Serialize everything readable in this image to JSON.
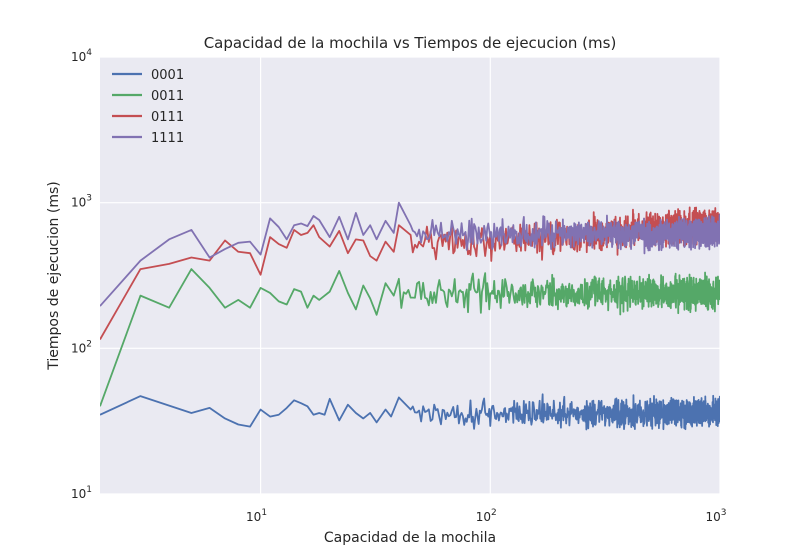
{
  "chart_data": {
    "type": "line",
    "title": "Capacidad de la mochila vs Tiempos de ejecucion (ms)",
    "xlabel": "Capacidad de la mochila",
    "ylabel": "Tiempos de ejecucion (ms)",
    "xscale": "log",
    "yscale": "log",
    "xlim": [
      2,
      1000
    ],
    "ylim": [
      10,
      10000
    ],
    "x_ticks": [
      {
        "value": 10,
        "base": "10",
        "exp": "1"
      },
      {
        "value": 100,
        "base": "10",
        "exp": "2"
      },
      {
        "value": 1000,
        "base": "10",
        "exp": "3"
      }
    ],
    "y_ticks": [
      {
        "value": 10,
        "base": "10",
        "exp": "1"
      },
      {
        "value": 100,
        "base": "10",
        "exp": "2"
      },
      {
        "value": 1000,
        "base": "10",
        "exp": "3"
      },
      {
        "value": 10000,
        "base": "10",
        "exp": "4"
      }
    ],
    "grid": true,
    "background": "#EAEAF2",
    "legend_position": "top-left",
    "series": [
      {
        "name": "0001",
        "color": "#4C72B0",
        "trend": {
          "type": "flat",
          "level": 36
        },
        "noise": 0.14,
        "points": [
          [
            2,
            35
          ],
          [
            3,
            47
          ],
          [
            5,
            36
          ],
          [
            6,
            39
          ],
          [
            7,
            33
          ],
          [
            8,
            30
          ],
          [
            9,
            29
          ],
          [
            10,
            38
          ],
          [
            11,
            34
          ],
          [
            12,
            35
          ],
          [
            13,
            39
          ],
          [
            14,
            44
          ],
          [
            15,
            42
          ],
          [
            16,
            40
          ],
          [
            17,
            35
          ],
          [
            18,
            36
          ],
          [
            19,
            35
          ],
          [
            20,
            45
          ],
          [
            22,
            32
          ],
          [
            24,
            41
          ],
          [
            26,
            36
          ],
          [
            28,
            33
          ],
          [
            30,
            36
          ],
          [
            32,
            31
          ],
          [
            35,
            38
          ],
          [
            37,
            34
          ],
          [
            40,
            46
          ],
          [
            45,
            38
          ]
        ]
      },
      {
        "name": "0011",
        "color": "#55A868",
        "trend": {
          "type": "flat",
          "level": 240
        },
        "noise": 0.16,
        "points": [
          [
            2,
            40
          ],
          [
            3,
            230
          ],
          [
            4,
            190
          ],
          [
            5,
            350
          ],
          [
            6,
            260
          ],
          [
            7,
            190
          ],
          [
            8,
            215
          ],
          [
            9,
            190
          ],
          [
            10,
            260
          ],
          [
            11,
            240
          ],
          [
            12,
            210
          ],
          [
            13,
            200
          ],
          [
            14,
            255
          ],
          [
            15,
            245
          ],
          [
            16,
            190
          ],
          [
            17,
            230
          ],
          [
            18,
            215
          ],
          [
            20,
            245
          ],
          [
            22,
            340
          ],
          [
            24,
            240
          ],
          [
            26,
            185
          ],
          [
            28,
            270
          ],
          [
            30,
            220
          ],
          [
            32,
            170
          ],
          [
            35,
            280
          ],
          [
            38,
            230
          ],
          [
            40,
            300
          ]
        ]
      },
      {
        "name": "0111",
        "color": "#C44E52",
        "trend": {
          "type": "rising",
          "start": [
            40,
            500
          ],
          "end": [
            1000,
            700
          ]
        },
        "noise": 0.17,
        "points": [
          [
            2,
            115
          ],
          [
            3,
            350
          ],
          [
            4,
            380
          ],
          [
            5,
            420
          ],
          [
            6,
            400
          ],
          [
            7,
            550
          ],
          [
            8,
            460
          ],
          [
            9,
            450
          ],
          [
            10,
            320
          ],
          [
            11,
            580
          ],
          [
            12,
            520
          ],
          [
            13,
            490
          ],
          [
            14,
            650
          ],
          [
            15,
            600
          ],
          [
            16,
            620
          ],
          [
            17,
            700
          ],
          [
            18,
            580
          ],
          [
            20,
            500
          ],
          [
            22,
            640
          ],
          [
            24,
            450
          ],
          [
            26,
            560
          ],
          [
            28,
            550
          ],
          [
            30,
            430
          ],
          [
            32,
            400
          ],
          [
            35,
            540
          ],
          [
            38,
            460
          ],
          [
            40,
            700
          ],
          [
            45,
            600
          ]
        ]
      },
      {
        "name": "1111",
        "color": "#8172B2",
        "trend": {
          "type": "flat",
          "level": 620
        },
        "noise": 0.15,
        "points": [
          [
            2,
            195
          ],
          [
            3,
            400
          ],
          [
            4,
            560
          ],
          [
            5,
            650
          ],
          [
            6,
            420
          ],
          [
            7,
            480
          ],
          [
            8,
            530
          ],
          [
            9,
            540
          ],
          [
            10,
            440
          ],
          [
            11,
            780
          ],
          [
            12,
            680
          ],
          [
            13,
            560
          ],
          [
            14,
            700
          ],
          [
            15,
            720
          ],
          [
            16,
            690
          ],
          [
            17,
            810
          ],
          [
            18,
            760
          ],
          [
            20,
            580
          ],
          [
            22,
            800
          ],
          [
            24,
            560
          ],
          [
            26,
            850
          ],
          [
            28,
            600
          ],
          [
            30,
            700
          ],
          [
            32,
            560
          ],
          [
            35,
            750
          ],
          [
            38,
            620
          ],
          [
            40,
            1000
          ],
          [
            45,
            700
          ]
        ]
      }
    ]
  }
}
